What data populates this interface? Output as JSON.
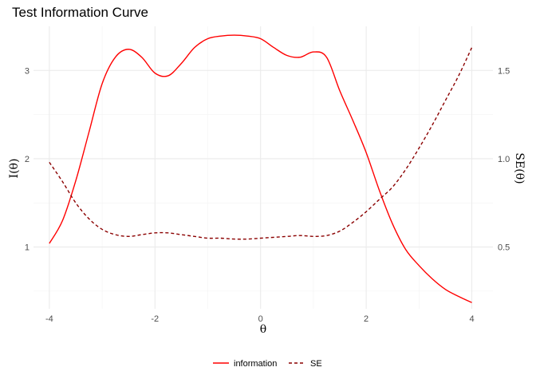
{
  "chart_data": {
    "type": "line",
    "title": "Test Information Curve",
    "xlabel": "θ",
    "ylabel": "I(θ)",
    "y2label": "SE(θ)",
    "xlim": [
      -4.3,
      4.4
    ],
    "ylim": [
      0.3,
      3.5
    ],
    "y2lim": [
      0.15,
      1.75
    ],
    "x_ticks": [
      -4,
      -2,
      0,
      2,
      4
    ],
    "y_ticks": [
      1,
      2,
      3
    ],
    "y2_ticks": [
      0.5,
      1.0,
      1.5
    ],
    "x_tick_labels": [
      "-4",
      "-2",
      "0",
      "2",
      "4"
    ],
    "y_tick_labels": [
      "1",
      "2",
      "3"
    ],
    "y2_tick_labels": [
      "0.5",
      "1.0",
      "1.5"
    ],
    "grid": true,
    "legend_position": "bottom",
    "series": [
      {
        "name": "information",
        "axis": "left",
        "line_style": "solid",
        "color": "#ff0000",
        "x": [
          -4.0,
          -3.75,
          -3.5,
          -3.25,
          -3.0,
          -2.75,
          -2.5,
          -2.25,
          -2.0,
          -1.75,
          -1.5,
          -1.25,
          -1.0,
          -0.75,
          -0.5,
          -0.25,
          0.0,
          0.25,
          0.5,
          0.75,
          1.0,
          1.25,
          1.5,
          1.75,
          2.0,
          2.25,
          2.5,
          2.75,
          3.0,
          3.25,
          3.5,
          3.75,
          4.0
        ],
        "y": [
          1.04,
          1.3,
          1.75,
          2.3,
          2.85,
          3.15,
          3.24,
          3.15,
          2.97,
          2.94,
          3.08,
          3.26,
          3.36,
          3.39,
          3.4,
          3.39,
          3.36,
          3.26,
          3.17,
          3.15,
          3.21,
          3.15,
          2.77,
          2.43,
          2.07,
          1.64,
          1.26,
          0.97,
          0.79,
          0.64,
          0.52,
          0.44,
          0.37
        ]
      },
      {
        "name": "SE",
        "axis": "right",
        "line_style": "dashed",
        "color": "#8b0000",
        "x": [
          -4.0,
          -3.75,
          -3.5,
          -3.25,
          -3.0,
          -2.75,
          -2.5,
          -2.25,
          -2.0,
          -1.75,
          -1.5,
          -1.25,
          -1.0,
          -0.75,
          -0.5,
          -0.25,
          0.0,
          0.25,
          0.5,
          0.75,
          1.0,
          1.25,
          1.5,
          1.75,
          2.0,
          2.25,
          2.5,
          2.75,
          3.0,
          3.25,
          3.5,
          3.75,
          4.0
        ],
        "y": [
          0.98,
          0.87,
          0.75,
          0.66,
          0.6,
          0.57,
          0.56,
          0.57,
          0.58,
          0.58,
          0.57,
          0.56,
          0.55,
          0.55,
          0.545,
          0.545,
          0.55,
          0.555,
          0.56,
          0.565,
          0.56,
          0.565,
          0.59,
          0.64,
          0.7,
          0.77,
          0.84,
          0.94,
          1.06,
          1.19,
          1.33,
          1.47,
          1.63
        ]
      }
    ]
  }
}
